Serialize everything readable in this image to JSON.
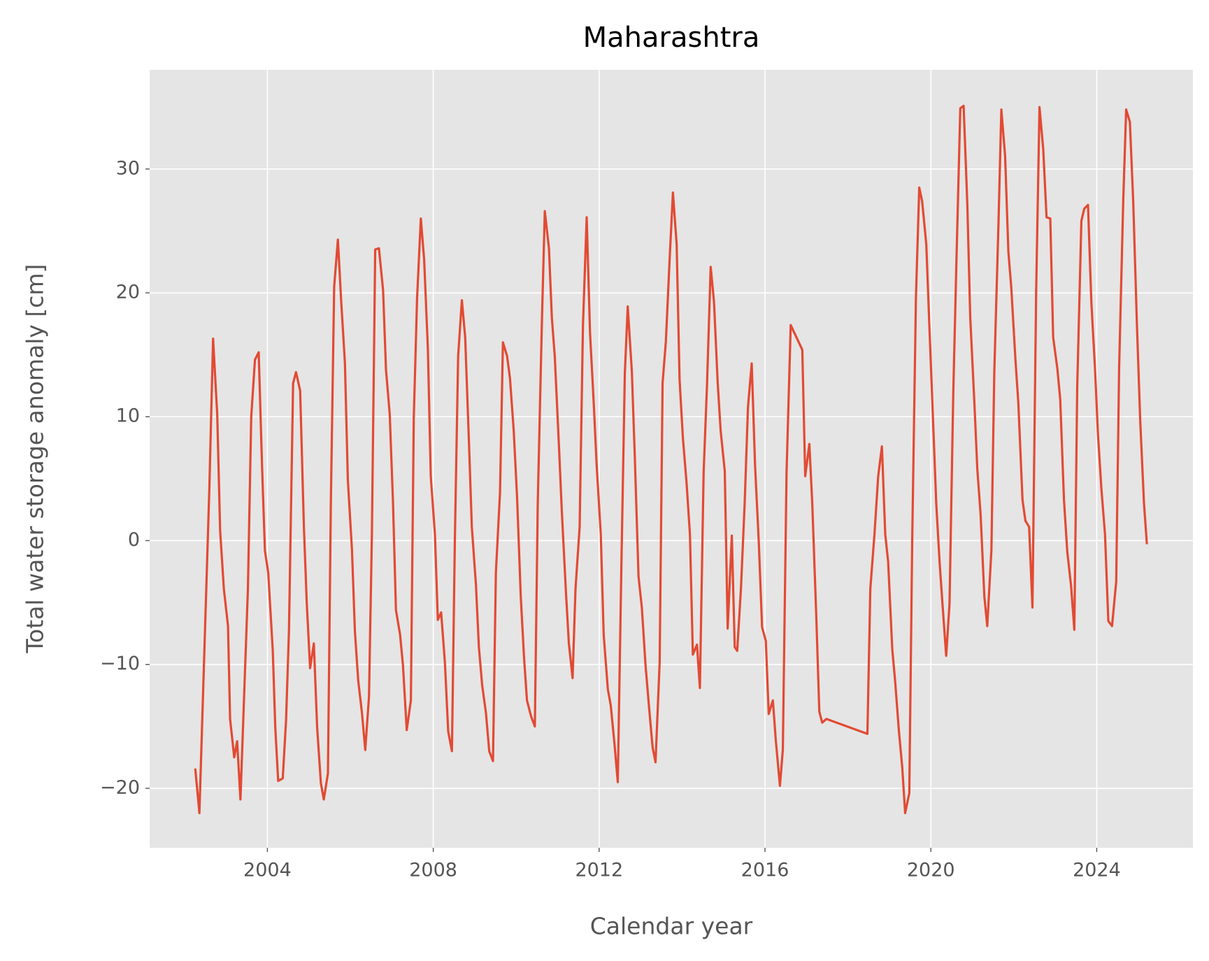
{
  "chart_data": {
    "type": "line",
    "title": "Maharashtra",
    "x_label": "Calendar year",
    "y_label": "Total water storage anomaly [cm]",
    "xlim": [
      2001.16,
      2026.32
    ],
    "ylim": [
      -24.8,
      38
    ],
    "xticks": [
      2004,
      2008,
      2012,
      2016,
      2020,
      2024
    ],
    "yticks": [
      {
        "value": -20,
        "label": "−20"
      },
      {
        "value": -10,
        "label": "−10"
      },
      0,
      10,
      20,
      30
    ],
    "grid": true,
    "background": "#e5e5e5",
    "series": [
      {
        "color": "#e24a33",
        "x": [
          2002.26,
          2002.36,
          2002.6,
          2002.69,
          2002.79,
          2002.86,
          2002.95,
          2003.05,
          2003.1,
          2003.2,
          2003.27,
          2003.35,
          2003.53,
          2003.61,
          2003.7,
          2003.79,
          2003.87,
          2003.94,
          2004.02,
          2004.13,
          2004.19,
          2004.26,
          2004.37,
          2004.45,
          2004.52,
          2004.62,
          2004.69,
          2004.79,
          2004.88,
          2004.95,
          2005.03,
          2005.12,
          2005.2,
          2005.29,
          2005.36,
          2005.46,
          2005.53,
          2005.61,
          2005.7,
          2005.78,
          2005.87,
          2005.94,
          2006.04,
          2006.11,
          2006.19,
          2006.28,
          2006.36,
          2006.45,
          2006.52,
          2006.6,
          2006.69,
          2006.79,
          2006.86,
          2006.95,
          2007.03,
          2007.1,
          2007.2,
          2007.27,
          2007.36,
          2007.46,
          2007.53,
          2007.61,
          2007.7,
          2007.78,
          2007.87,
          2007.94,
          2008.04,
          2008.11,
          2008.19,
          2008.28,
          2008.36,
          2008.45,
          2008.52,
          2008.6,
          2008.69,
          2008.77,
          2008.86,
          2008.93,
          2009.03,
          2009.1,
          2009.18,
          2009.27,
          2009.35,
          2009.44,
          2009.51,
          2009.61,
          2009.68,
          2009.78,
          2009.85,
          2009.94,
          2010.02,
          2010.11,
          2010.19,
          2010.26,
          2010.36,
          2010.45,
          2010.52,
          2010.62,
          2010.69,
          2010.79,
          2010.86,
          2010.93,
          2011.03,
          2011.1,
          2011.2,
          2011.27,
          2011.36,
          2011.43,
          2011.53,
          2011.61,
          2011.7,
          2011.78,
          2011.87,
          2011.94,
          2012.04,
          2012.11,
          2012.21,
          2012.28,
          2012.37,
          2012.45,
          2012.54,
          2012.62,
          2012.69,
          2012.79,
          2012.86,
          2012.95,
          2013.03,
          2013.12,
          2013.2,
          2013.29,
          2013.36,
          2013.46,
          2013.53,
          2013.61,
          2013.7,
          2013.78,
          2013.87,
          2013.94,
          2014.02,
          2014.11,
          2014.19,
          2014.26,
          2014.36,
          2014.43,
          2014.52,
          2014.6,
          2014.69,
          2014.77,
          2014.86,
          2014.93,
          2015.03,
          2015.1,
          2015.2,
          2015.27,
          2015.33,
          2015.42,
          2015.51,
          2015.59,
          2015.68,
          2015.76,
          2015.85,
          2015.93,
          2016.02,
          2016.09,
          2016.19,
          2016.26,
          2016.36,
          2016.43,
          2016.52,
          2016.62,
          2016.9,
          2016.97,
          2017.07,
          2017.14,
          2017.24,
          2017.31,
          2017.38,
          2017.48,
          2018.47,
          2018.54,
          2018.64,
          2018.73,
          2018.82,
          2018.9,
          2018.97,
          2019.07,
          2019.14,
          2019.23,
          2019.31,
          2019.38,
          2019.48,
          2019.55,
          2019.64,
          2019.72,
          2019.79,
          2019.89,
          2019.96,
          2020.04,
          2020.13,
          2020.21,
          2020.28,
          2020.37,
          2020.45,
          2020.54,
          2020.62,
          2020.71,
          2020.79,
          2020.88,
          2020.95,
          2021.05,
          2021.12,
          2021.2,
          2021.29,
          2021.36,
          2021.46,
          2021.53,
          2021.63,
          2021.7,
          2021.79,
          2021.87,
          2021.94,
          2022.04,
          2022.11,
          2022.21,
          2022.28,
          2022.37,
          2022.45,
          2022.54,
          2022.62,
          2022.71,
          2022.79,
          2022.88,
          2022.95,
          2023.05,
          2023.12,
          2023.21,
          2023.29,
          2023.38,
          2023.46,
          2023.53,
          2023.63,
          2023.7,
          2023.79,
          2023.87,
          2023.96,
          2024.03,
          2024.11,
          2024.2,
          2024.28,
          2024.37,
          2024.47,
          2024.54,
          2024.64,
          2024.71,
          2024.8,
          2024.88,
          2024.97,
          2025.05,
          2025.14,
          2025.21
        ],
        "values": [
          -18.4,
          -22.0,
          4.2,
          16.3,
          10.2,
          0.8,
          -3.9,
          -6.9,
          -14.4,
          -17.5,
          -16.2,
          -20.9,
          -3.9,
          10.0,
          14.6,
          15.2,
          6.1,
          -0.8,
          -2.6,
          -8.9,
          -15.1,
          -19.4,
          -19.2,
          -14.5,
          -7.3,
          12.7,
          13.6,
          12.1,
          1.1,
          -5.1,
          -10.3,
          -8.3,
          -15.1,
          -19.6,
          -20.9,
          -18.8,
          3.0,
          20.5,
          24.3,
          19.3,
          14.3,
          4.9,
          -0.8,
          -7.3,
          -11.3,
          -13.9,
          -16.9,
          -12.6,
          0.5,
          23.5,
          23.6,
          20.2,
          13.8,
          10.2,
          3.0,
          -5.6,
          -7.6,
          -10.1,
          -15.3,
          -12.9,
          9.9,
          19.6,
          26.0,
          22.7,
          15.5,
          5.2,
          0.5,
          -6.4,
          -5.8,
          -9.8,
          -15.4,
          -17.0,
          -0.1,
          14.9,
          19.4,
          16.4,
          8.0,
          1.1,
          -3.6,
          -8.6,
          -11.7,
          -13.9,
          -17.0,
          -17.8,
          -2.6,
          3.9,
          16.0,
          14.9,
          13.1,
          8.9,
          3.6,
          -4.5,
          -9.5,
          -12.9,
          -14.2,
          -15.0,
          3.0,
          17.7,
          26.6,
          23.6,
          18.0,
          14.9,
          7.7,
          2.4,
          -4.2,
          -8.3,
          -11.1,
          -3.9,
          1.1,
          17.4,
          26.1,
          16.8,
          11.1,
          6.1,
          0.5,
          -7.6,
          -12.0,
          -13.3,
          -16.4,
          -19.5,
          -1.4,
          13.5,
          18.9,
          13.6,
          6.8,
          -2.9,
          -5.4,
          -10.1,
          -13.3,
          -16.7,
          -17.9,
          -9.8,
          12.7,
          16.1,
          22.7,
          28.1,
          23.9,
          13.0,
          8.3,
          4.6,
          0.5,
          -9.2,
          -8.4,
          -11.9,
          5.5,
          12.4,
          22.1,
          19.3,
          12.7,
          8.9,
          5.6,
          -7.1,
          0.4,
          -8.6,
          -8.9,
          -3.9,
          3.0,
          10.8,
          14.3,
          6.1,
          -0.1,
          -7.0,
          -8.1,
          -14.0,
          -12.9,
          -16.1,
          -19.8,
          -16.9,
          5.5,
          17.4,
          15.4,
          5.2,
          7.8,
          3.0,
          -6.4,
          -13.8,
          -14.7,
          -14.4,
          -15.6,
          -3.9,
          0.5,
          5.2,
          7.6,
          0.5,
          -1.7,
          -8.8,
          -11.4,
          -15.4,
          -18.3,
          -22.0,
          -20.4,
          -0.1,
          19.6,
          28.5,
          27.4,
          23.9,
          17.7,
          10.8,
          3.0,
          -1.7,
          -5.1,
          -9.3,
          -5.1,
          11.8,
          23.0,
          34.9,
          35.1,
          27.1,
          18.0,
          11.1,
          5.8,
          2.1,
          -4.5,
          -6.9,
          -0.8,
          13.6,
          25.5,
          34.8,
          31.1,
          23.3,
          20.4,
          14.6,
          11.1,
          3.3,
          1.6,
          1.1,
          -5.4,
          20.2,
          35.0,
          31.6,
          26.1,
          26.0,
          16.4,
          13.9,
          11.4,
          3.3,
          -0.9,
          -3.6,
          -7.2,
          12.4,
          25.8,
          26.8,
          27.1,
          19.3,
          13.8,
          8.6,
          4.3,
          0.5,
          -6.5,
          -6.9,
          -3.3,
          13.9,
          27.5,
          34.8,
          33.8,
          27.4,
          17.4,
          9.6,
          3.0,
          -0.3
        ]
      }
    ]
  }
}
